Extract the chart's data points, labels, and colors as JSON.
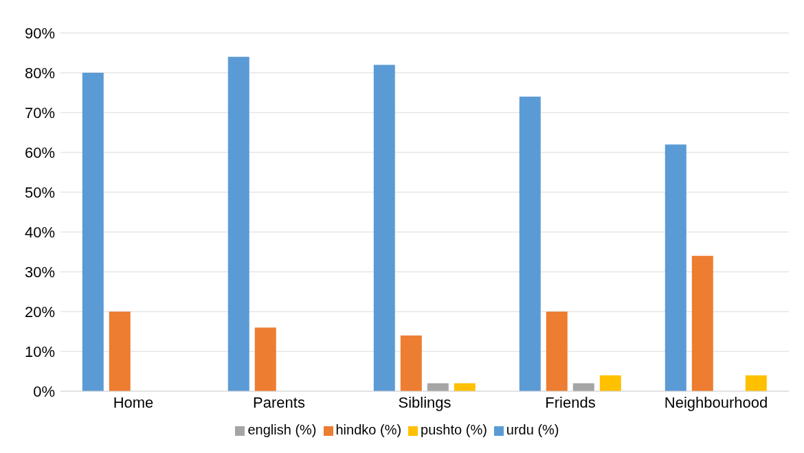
{
  "chart_data": {
    "type": "bar",
    "categories": [
      "Home",
      "Parents",
      "Siblings",
      "Friends",
      "Neighbourhood"
    ],
    "series": [
      {
        "name": "urdu (%)",
        "color": "#5b9bd5",
        "values": [
          80,
          84,
          82,
          74,
          62
        ]
      },
      {
        "name": "hindko (%)",
        "color": "#ed7d31",
        "values": [
          20,
          16,
          14,
          20,
          34
        ]
      },
      {
        "name": "english (%)",
        "color": "#a5a5a5",
        "values": [
          0,
          0,
          2,
          2,
          0
        ]
      },
      {
        "name": "pushto (%)",
        "color": "#ffc000",
        "values": [
          0,
          0,
          2,
          4,
          4
        ]
      }
    ],
    "ylim": [
      0,
      90
    ],
    "yticks": [
      {
        "value": 0,
        "label": "0%"
      },
      {
        "value": 10,
        "label": "10%"
      },
      {
        "value": 20,
        "label": "20%"
      },
      {
        "value": 30,
        "label": "30%"
      },
      {
        "value": 40,
        "label": "40%"
      },
      {
        "value": 50,
        "label": "50%"
      },
      {
        "value": 60,
        "label": "60%"
      },
      {
        "value": 70,
        "label": "70%"
      },
      {
        "value": 80,
        "label": "80%"
      },
      {
        "value": 90,
        "label": "90%"
      }
    ],
    "grid": "y",
    "legend": "bottom"
  }
}
